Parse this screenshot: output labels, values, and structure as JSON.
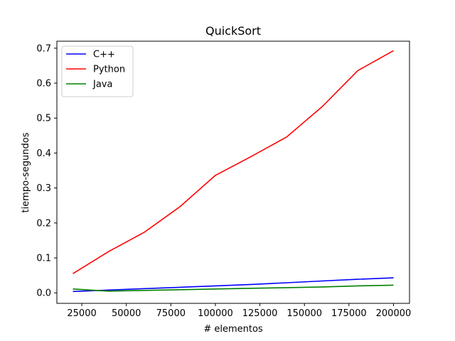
{
  "chart_data": {
    "type": "line",
    "title": "QuickSort",
    "xlabel": "# elementos",
    "ylabel": "tiempo-segundos",
    "xlim": [
      11000,
      209000
    ],
    "ylim": [
      -0.03,
      0.72
    ],
    "xticks": [
      25000,
      50000,
      75000,
      100000,
      125000,
      150000,
      175000,
      200000
    ],
    "xtick_labels": [
      "25000",
      "50000",
      "75000",
      "100000",
      "125000",
      "150000",
      "175000",
      "200000"
    ],
    "yticks": [
      0.0,
      0.1,
      0.2,
      0.3,
      0.4,
      0.5,
      0.6,
      0.7
    ],
    "ytick_labels": [
      "0.0",
      "0.1",
      "0.2",
      "0.3",
      "0.4",
      "0.5",
      "0.6",
      "0.7"
    ],
    "grid": false,
    "legend_position": "top-left",
    "x": [
      20000,
      40000,
      60000,
      80000,
      100000,
      120000,
      140000,
      160000,
      180000,
      200000
    ],
    "series": [
      {
        "name": "C++",
        "color": "#0000ff",
        "values": [
          0.004,
          0.008,
          0.012,
          0.016,
          0.02,
          0.024,
          0.029,
          0.034,
          0.039,
          0.043
        ]
      },
      {
        "name": "Python",
        "color": "#ff0000",
        "values": [
          0.055,
          0.118,
          0.173,
          0.246,
          0.336,
          0.39,
          0.446,
          0.533,
          0.636,
          0.693
        ]
      },
      {
        "name": "Java",
        "color": "#008000",
        "values": [
          0.011,
          0.005,
          0.007,
          0.009,
          0.011,
          0.013,
          0.015,
          0.017,
          0.02,
          0.022
        ]
      }
    ]
  }
}
